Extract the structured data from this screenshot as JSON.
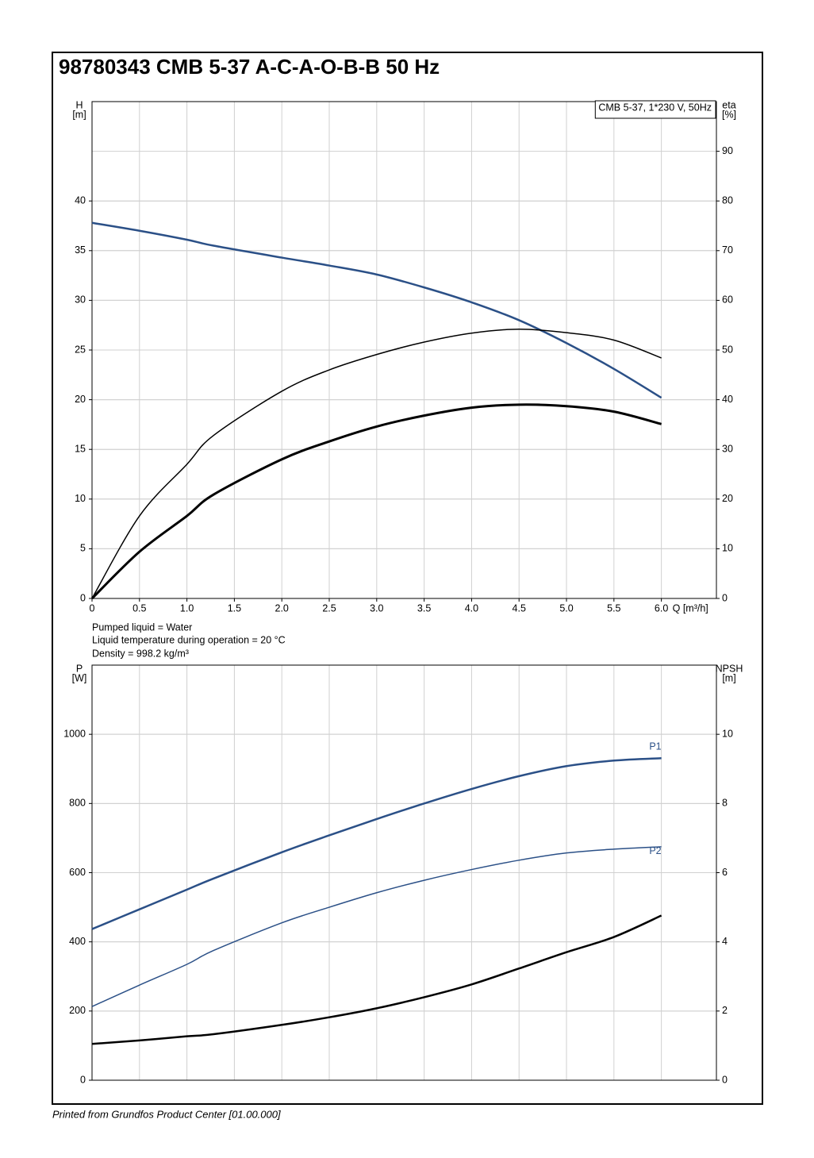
{
  "title": "98780343 CMB 5-37 A-C-A-O-B-B 50 Hz",
  "notes": [
    "Pumped liquid = Water",
    "Liquid temperature during operation = 20 °C",
    "Density = 998.2 kg/m³"
  ],
  "footer": "Printed from Grundfos Product Center [01.00.000]",
  "chart_data": [
    {
      "type": "line",
      "subtitle": "CMB 5-37, 1*230 V, 50Hz",
      "xlabel": "Q [m³/h]",
      "ylabel": [
        "H",
        "[m]"
      ],
      "y2label": [
        "eta",
        "[%]"
      ],
      "x": [
        0,
        0.5,
        1,
        1.28,
        2,
        2.5,
        3,
        3.5,
        4,
        4.5,
        5,
        5.5,
        6
      ],
      "xlim": [
        0,
        6.58
      ],
      "xticks": [
        0,
        0.5,
        {
          "value": 1,
          "label": "1.0"
        },
        1.5,
        {
          "value": 2,
          "label": "2.0"
        },
        2.5,
        {
          "value": 3,
          "label": "3.0"
        },
        3.5,
        {
          "value": 4,
          "label": "4.0"
        },
        4.5,
        {
          "value": 5,
          "label": "5.0"
        },
        5.5,
        {
          "value": 6,
          "label": "6.0"
        }
      ],
      "ylim": [
        0,
        50
      ],
      "yticks": [
        0,
        5,
        10,
        15,
        20,
        25,
        30,
        35,
        40
      ],
      "y2lim": [
        0,
        100
      ],
      "y2ticks": [
        0,
        10,
        20,
        30,
        40,
        50,
        60,
        70,
        80,
        90
      ],
      "grid": true,
      "series": [
        {
          "color": "#2b5087",
          "values": [
            37.8,
            37.0,
            36.1,
            35.5,
            34.3,
            33.5,
            32.6,
            31.3,
            29.8,
            28.0,
            25.7,
            23.1,
            20.2
          ]
        },
        {
          "color": "#000000",
          "axis": "y2",
          "values": [
            0,
            16.6,
            27,
            32.8,
            41.7,
            46.0,
            49.1,
            51.6,
            53.4,
            54.2,
            53.5,
            52,
            48.4
          ]
        },
        {
          "color": "#000000",
          "axis": "y2",
          "values": [
            0,
            9.4,
            16.6,
            20.9,
            28.0,
            31.6,
            34.6,
            36.8,
            38.4,
            39.0,
            38.7,
            37.6,
            35.1
          ]
        }
      ]
    },
    {
      "type": "line",
      "ylabel": [
        "P",
        "[W]"
      ],
      "y2label": [
        "NPSH",
        "[m]"
      ],
      "x": [
        0,
        0.5,
        1,
        1.28,
        2,
        2.5,
        3,
        3.5,
        4,
        4.5,
        5,
        5.5,
        6
      ],
      "xlim": [
        0,
        6.58
      ],
      "ylim": [
        0,
        1200
      ],
      "yticks": [
        0,
        200,
        400,
        600,
        800,
        1000
      ],
      "y2lim": [
        0,
        12
      ],
      "y2ticks": [
        0,
        2,
        4,
        6,
        8,
        10
      ],
      "grid": true,
      "series": [
        {
          "name": "P1",
          "color": "#2b5087",
          "values": [
            437,
            494,
            551,
            583,
            659,
            708,
            755,
            800,
            842,
            879,
            908,
            924,
            931
          ]
        },
        {
          "name": "P2",
          "color": "#2b5087",
          "values": [
            213,
            275,
            335,
            375,
            455,
            500,
            542,
            578,
            609,
            636,
            657,
            668,
            675
          ]
        },
        {
          "color": "#000000",
          "axis": "y2",
          "values": [
            1.05,
            1.15,
            1.27,
            1.33,
            1.6,
            1.82,
            2.08,
            2.4,
            2.77,
            3.23,
            3.7,
            4.14,
            4.76
          ]
        }
      ]
    }
  ]
}
